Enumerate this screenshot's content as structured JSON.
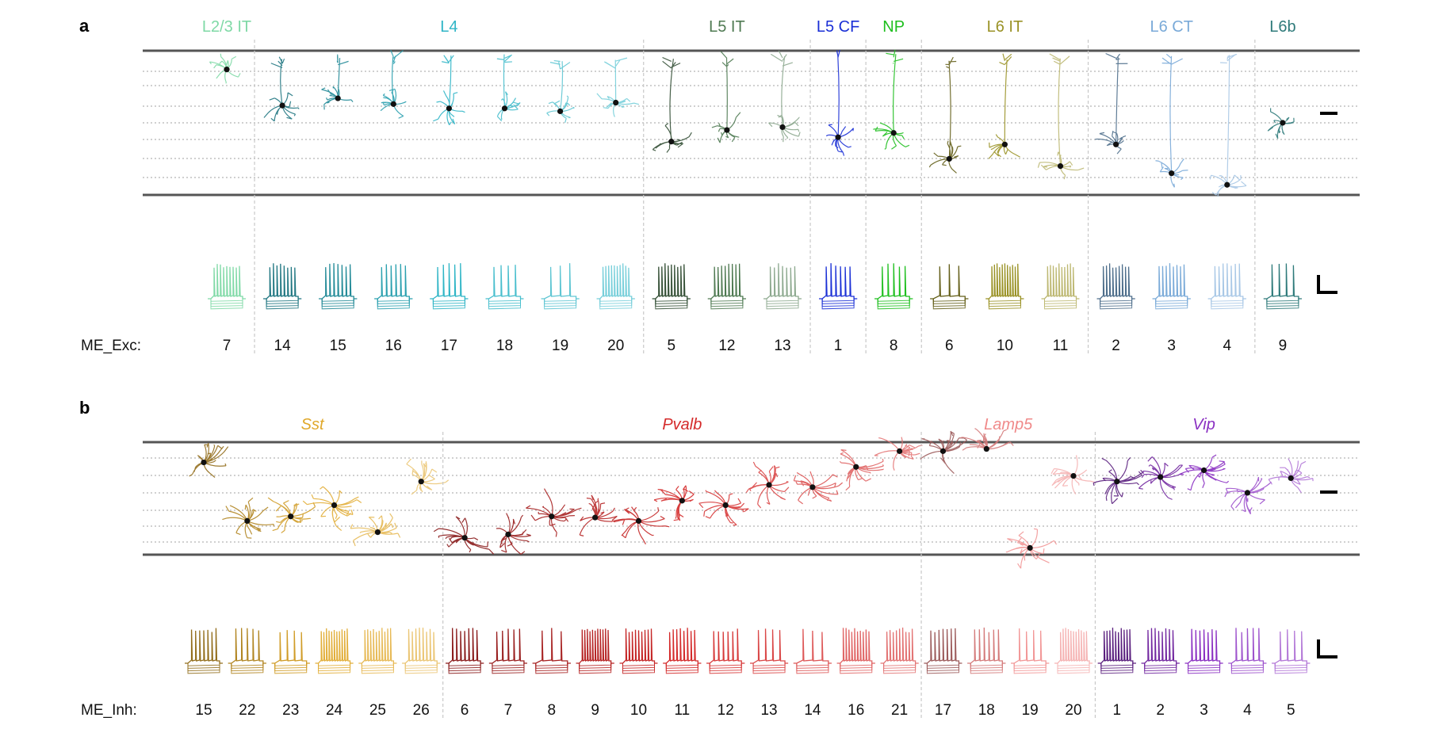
{
  "panels": [
    {
      "letter": "a",
      "row_label": "ME_Exc:",
      "groups": [
        {
          "name": "L2/3 IT",
          "italic": false,
          "color": "#7fd9a6",
          "ids": [
            "7"
          ]
        },
        {
          "name": "L4",
          "italic": false,
          "color": "#2fb5c6",
          "ids": [
            "14",
            "15",
            "16",
            "17",
            "18",
            "19",
            "20"
          ]
        },
        {
          "name": "L5 IT",
          "italic": false,
          "color": "#4f7a52",
          "ids": [
            "5",
            "12",
            "13"
          ]
        },
        {
          "name": "L5 CF",
          "italic": false,
          "color": "#1a2fd6",
          "ids": [
            "1"
          ]
        },
        {
          "name": "NP",
          "italic": false,
          "color": "#1fbf1f",
          "ids": [
            "8"
          ]
        },
        {
          "name": "L6 IT",
          "italic": false,
          "color": "#9a9226",
          "ids": [
            "6",
            "10",
            "11"
          ]
        },
        {
          "name": "L6 CT",
          "italic": false,
          "color": "#7aaad8",
          "ids": [
            "2",
            "3",
            "4"
          ]
        },
        {
          "name": "L6b",
          "italic": false,
          "color": "#2e7a7a",
          "ids": [
            "9"
          ]
        }
      ]
    },
    {
      "letter": "b",
      "row_label": "ME_Inh:",
      "groups": [
        {
          "name": "Sst",
          "italic": true,
          "color": "#e0a82a",
          "ids": [
            "15",
            "22",
            "23",
            "24",
            "25",
            "26"
          ]
        },
        {
          "name": "Pvalb",
          "italic": true,
          "color": "#d42a2a",
          "ids": [
            "6",
            "7",
            "8",
            "9",
            "10",
            "11",
            "12",
            "13",
            "14",
            "16",
            "21"
          ]
        },
        {
          "name": "Lamp5",
          "italic": true,
          "color": "#f08a8a",
          "ids": [
            "17",
            "18",
            "19",
            "20"
          ]
        },
        {
          "name": "Vip",
          "italic": true,
          "color": "#8a2fc2",
          "ids": [
            "1",
            "2",
            "3",
            "4",
            "5"
          ]
        }
      ]
    }
  ]
}
